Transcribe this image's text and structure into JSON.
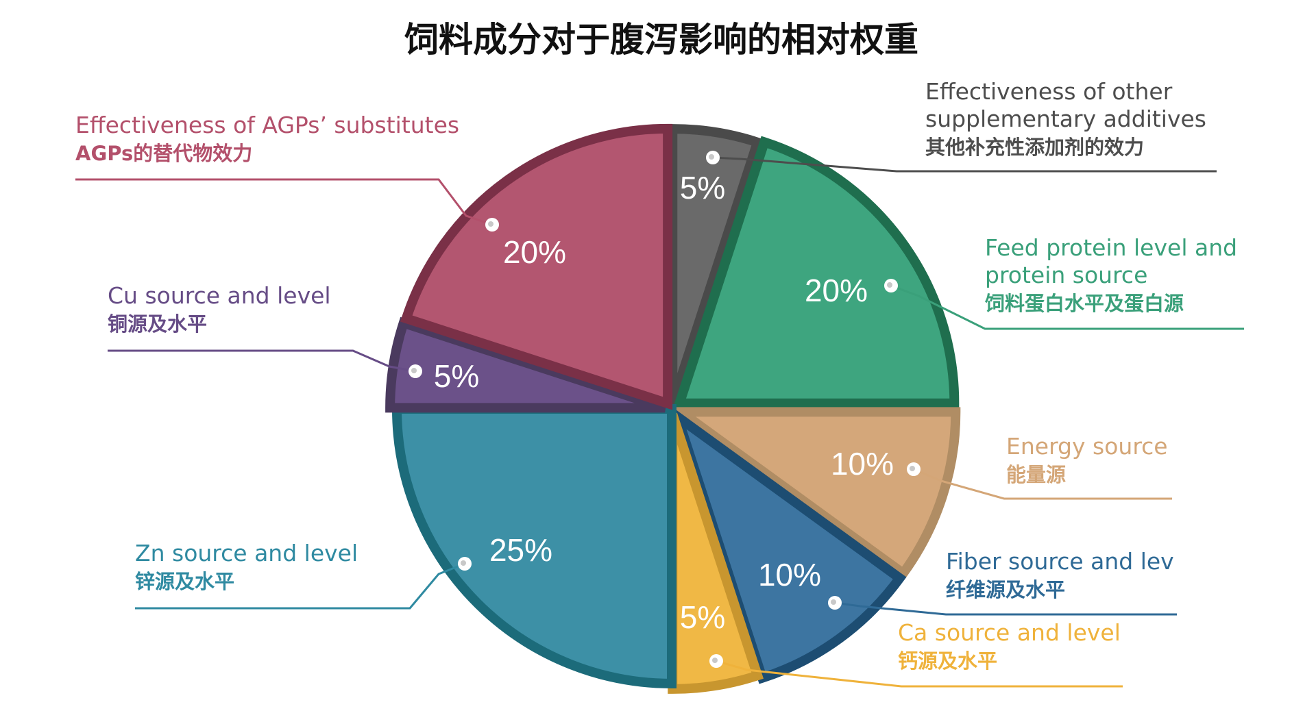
{
  "chart_data": {
    "type": "pie",
    "title": "饲料成分对于腹泻影响的相对权重",
    "unit": "%",
    "slices": [
      {
        "value": 5,
        "value_label": "5%",
        "label_en": [
          "Effectiveness of other",
          "supplementary additives"
        ],
        "label_zh": "其他补充性添加剂的效力",
        "fill": "#6a6a6a",
        "border": "#4a4a4a",
        "label_color": "#4d4d4d"
      },
      {
        "value": 20,
        "value_label": "20%",
        "label_en": [
          "Feed protein level and",
          "protein source"
        ],
        "label_zh": "饲料蛋白水平及蛋白源",
        "fill": "#3ea57f",
        "border": "#1f6e4e",
        "label_color": "#3aa07a"
      },
      {
        "value": 10,
        "value_label": "10%",
        "label_en": [
          "Energy source"
        ],
        "label_zh": "能量源",
        "fill": "#d4a77a",
        "border": "#b08d64",
        "label_color": "#d4a677"
      },
      {
        "value": 10,
        "value_label": "10%",
        "label_en": [
          "Fiber source and lev"
        ],
        "label_zh": "纤维源及水平",
        "fill": "#3d75a1",
        "border": "#1d4d72",
        "label_color": "#2f6a96"
      },
      {
        "value": 5,
        "value_label": "5%",
        "label_en": [
          "Ca source and level"
        ],
        "label_zh": "钙源及水平",
        "fill": "#f0b845",
        "border": "#c8962f",
        "label_color": "#efb23b"
      },
      {
        "value": 25,
        "value_label": "25%",
        "label_en": [
          "Zn source and level"
        ],
        "label_zh": "锌源及水平",
        "fill": "#3d90a6",
        "border": "#1c6b7a",
        "label_color": "#2f8aa1"
      },
      {
        "value": 5,
        "value_label": "5%",
        "label_en": [
          "Cu source and level"
        ],
        "label_zh": "铜源及水平",
        "fill": "#6b5189",
        "border": "#4a3a5e",
        "label_color": "#664c86"
      },
      {
        "value": 20,
        "value_label": "20%",
        "label_en": [
          "Effectiveness of AGPs’ substitutes"
        ],
        "label_zh": "AGPs的替代物效力",
        "fill": "#b35670",
        "border": "#7a3047",
        "label_color": "#b3506b"
      }
    ]
  }
}
